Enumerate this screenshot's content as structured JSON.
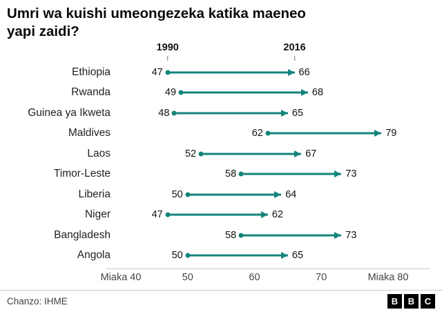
{
  "title_lines": [
    "Umri wa kuishi umeongezeka katika maeneo",
    "yapi zaidi?"
  ],
  "source": "Chanzo: IHME",
  "logo_letters": [
    "B",
    "B",
    "C"
  ],
  "colors": {
    "accent": "#13847b"
  },
  "chart_data": {
    "type": "dumbbell",
    "title": "Umri wa kuishi umeongezeka katika maeneo yapi zaidi?",
    "start_year_label": "1990",
    "end_year_label": "2016",
    "categories": [
      "Ethiopia",
      "Rwanda",
      "Guinea ya Ikweta",
      "Maldives",
      "Laos",
      "Timor-Leste",
      "Liberia",
      "Niger",
      "Bangladesh",
      "Angola"
    ],
    "series": [
      {
        "name": "1990",
        "values": [
          47,
          49,
          48,
          62,
          52,
          58,
          50,
          47,
          58,
          50
        ]
      },
      {
        "name": "2016",
        "values": [
          66,
          68,
          65,
          79,
          67,
          73,
          64,
          62,
          73,
          65
        ]
      }
    ],
    "xlim": [
      40,
      80
    ],
    "x_ticks": [
      {
        "value": 40,
        "label": "Miaka 40"
      },
      {
        "value": 50,
        "label": "50"
      },
      {
        "value": 60,
        "label": "60"
      },
      {
        "value": 70,
        "label": "70"
      },
      {
        "value": 80,
        "label": "Miaka 80"
      }
    ],
    "grid": false,
    "legend_position": "none"
  }
}
